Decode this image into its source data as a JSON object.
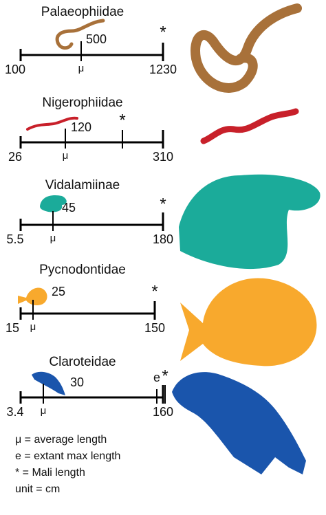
{
  "panels": [
    {
      "title": "Palaeophiidae",
      "min": "100",
      "max": "1230",
      "mean": "500",
      "mean_symbol": "μ",
      "mali": "*"
    },
    {
      "title": "Nigerophiidae",
      "min": "26",
      "max": "310",
      "mean": "120",
      "mean_symbol": "μ",
      "mali": "*"
    },
    {
      "title": "Vidalamiinae",
      "min": "5.5",
      "max": "180",
      "mean": "45",
      "mean_symbol": "μ",
      "mali": "*"
    },
    {
      "title": "Pycnodontidae",
      "min": "15",
      "max": "150",
      "mean": "25",
      "mean_symbol": "μ",
      "mali": "*"
    },
    {
      "title": "Claroteidae",
      "min": "3.4",
      "max": "160",
      "mean": "30",
      "mean_symbol": "μ",
      "mali": "*",
      "extant": "e"
    }
  ],
  "legend": [
    "μ = average length",
    "e = extant max length",
    "* = Mali length",
    "unit = cm"
  ]
}
